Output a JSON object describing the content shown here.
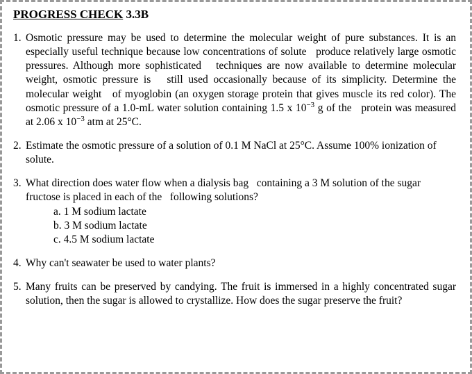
{
  "title_label": "PROGRESS CHECK",
  "title_number": "3.3B",
  "questions": {
    "q1": "Osmotic pressure may be used to determine the molecular weight of pure substances. It is an especially useful technique because low concentrations of solute produce relatively large osmotic pressures. Although more sophisticated techniques are now available to determine molecular weight, osmotic pressure is still used occasionally because of its simplicity. Determine the molecular weight of myoglobin (an oxygen storage protein that gives muscle its red color). The osmotic pressure of a 1.0-mL water solution containing 1.5 x 10⁻³ g of the protein was measured at 2.06 x 10⁻³ atm at 25°C.",
    "q2": "Estimate the osmotic pressure of a solution of 0.1 M NaCl at 25°C. Assume 100% ionization of solute.",
    "q3_main": "What direction does water flow when a dialysis bag containing a 3 M solution of the sugar fructose is placed in each of the following solutions?",
    "q3_a": "a. 1 M sodium lactate",
    "q3_b": "b. 3 M sodium lactate",
    "q3_c": "c. 4.5 M sodium lactate",
    "q4": "Why can't seawater be used to water plants?",
    "q5": "Many fruits can be preserved by candying. The fruit is immersed in a highly concentrated sugar solution, then the sugar is allowed to crystallize. How does the sugar preserve the fruit?"
  },
  "colors": {
    "text": "#000000",
    "background": "#ffffff",
    "border": "#999999"
  },
  "fonts": {
    "family": "Times New Roman",
    "title_size": 17,
    "body_size": 15.5
  }
}
